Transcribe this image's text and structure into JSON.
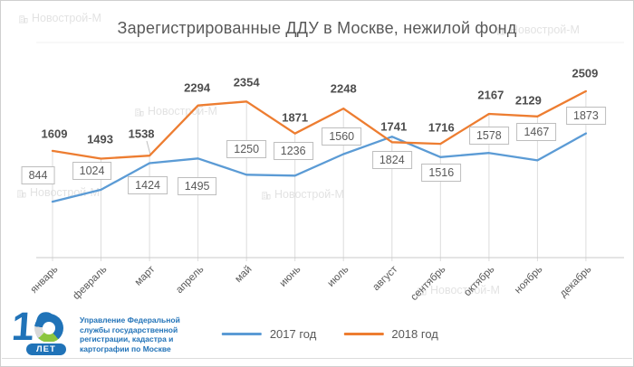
{
  "chart_data": {
    "type": "line",
    "title": "Зарегистрированные ДДУ в Москве, нежилой фонд",
    "categories": [
      "январь",
      "февраль",
      "март",
      "апрель",
      "май",
      "июнь",
      "июль",
      "август",
      "сентябрь",
      "октябрь",
      "ноябрь",
      "декабрь"
    ],
    "series": [
      {
        "name": "2017 год",
        "color": "#5B9BD5",
        "label_style": "boxed",
        "values": [
          844,
          1024,
          1424,
          1495,
          1250,
          1236,
          1560,
          1824,
          1516,
          1578,
          1467,
          1873
        ]
      },
      {
        "name": "2018 год",
        "color": "#ED7D31",
        "label_style": "bold",
        "values": [
          1609,
          1493,
          1538,
          2294,
          2354,
          1871,
          2248,
          1741,
          1716,
          2167,
          2129,
          2509
        ]
      }
    ],
    "xlabel": "",
    "ylabel": "",
    "ylim": [
      0,
      3200
    ],
    "y_axis_visible": false,
    "gridlines": "vertical-drop-lines",
    "legend_position": "bottom"
  },
  "legend": {
    "items": [
      {
        "label": "2017 год",
        "color": "#5B9BD5"
      },
      {
        "label": "2018 год",
        "color": "#ED7D31"
      }
    ]
  },
  "footer": {
    "logo_number": "10",
    "logo_badge": "ЛЕТ",
    "org_lines": [
      "Управление Федеральной",
      "службы государственной",
      "регистрации, кадастра и",
      "картографии по Москве"
    ]
  },
  "watermark": {
    "text": "Новострой-М"
  },
  "colors": {
    "series_2017": "#5B9BD5",
    "series_2018": "#ED7D31",
    "title_text": "#595959",
    "label_box_border": "#bdbdbd",
    "axis_line": "#c9c9c9",
    "drop_line": "#dcdcdc",
    "logo_blue": "#2073b8",
    "logo_green": "#8cc63f"
  }
}
